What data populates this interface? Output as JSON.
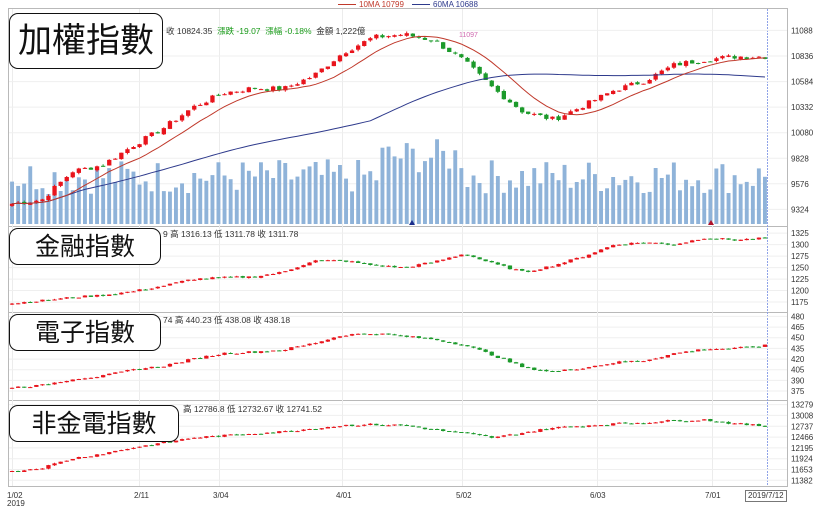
{
  "chart_data": {
    "type": "candlestick",
    "legend": [
      {
        "label": "10MA 10799",
        "color": "#c0392b"
      },
      {
        "label": "60MA 10688",
        "color": "#2e3a8c"
      }
    ],
    "x_ticks": [
      "1/02",
      "2/11",
      "3/04",
      "4/01",
      "5/02",
      "6/03",
      "7/01"
    ],
    "x_year": "2019",
    "cursor_date": "2019/7/12",
    "peak_label": "11097",
    "panels": [
      {
        "title": "加權指數",
        "info": {
          "close_lbl": "收 10824.35",
          "chg_lbl": "漲跌 -19.07",
          "pct_lbl": "漲幅 -0.18%",
          "amt_lbl": "金額 1,222億"
        },
        "y_ticks": [
          "11088",
          "10836",
          "10584",
          "10332",
          "10080",
          "9828",
          "9576",
          "9324"
        ],
        "y_range": [
          9200,
          11250
        ],
        "anchors": [
          9380,
          9420,
          9700,
          9760,
          9950,
          10120,
          10330,
          10470,
          10520,
          10510,
          10640,
          10870,
          11020,
          11050,
          10990,
          10790,
          10510,
          10280,
          10210,
          10350,
          10500,
          10590,
          10750,
          10800,
          10830,
          10830
        ]
      },
      {
        "title": "金融指數",
        "info": {
          "partial_lbl": "9 高 1316.13 低 1311.78 收 1311.78"
        },
        "y_ticks": [
          "1325",
          "1300",
          "1275",
          "1250",
          "1225",
          "1200",
          "1175"
        ],
        "y_range": [
          1162,
          1334
        ],
        "anchors": [
          1172,
          1178,
          1185,
          1190,
          1198,
          1210,
          1225,
          1228,
          1230,
          1240,
          1265,
          1265,
          1255,
          1250,
          1262,
          1280,
          1258,
          1240,
          1255,
          1275,
          1300,
          1305,
          1300,
          1315,
          1310,
          1314
        ]
      },
      {
        "title": "電子指數",
        "info": {
          "partial_lbl": "74 高 440.23 低 438.08 收 438.18"
        },
        "y_ticks": [
          "480",
          "465",
          "450",
          "435",
          "420",
          "405",
          "390",
          "375"
        ],
        "y_range": [
          368,
          482
        ],
        "anchors": [
          380,
          383,
          392,
          396,
          405,
          410,
          420,
          428,
          430,
          433,
          442,
          454,
          456,
          452,
          448,
          440,
          425,
          408,
          402,
          408,
          415,
          418,
          428,
          434,
          435,
          439
        ]
      },
      {
        "title": "非金電指數",
        "info": {
          "partial_lbl": "高 12786.8 低 12732.67 收 12741.52"
        },
        "y_ticks": [
          "13279",
          "13008",
          "12737",
          "12466",
          "12195",
          "11924",
          "11653",
          "11382"
        ],
        "y_range": [
          11340,
          13320
        ],
        "anchors": [
          11600,
          11700,
          11930,
          12050,
          12200,
          12320,
          12450,
          12500,
          12560,
          12600,
          12680,
          12760,
          12780,
          12760,
          12650,
          12560,
          12450,
          12580,
          12700,
          12750,
          12800,
          12830,
          12880,
          12900,
          12800,
          12740
        ]
      }
    ]
  }
}
